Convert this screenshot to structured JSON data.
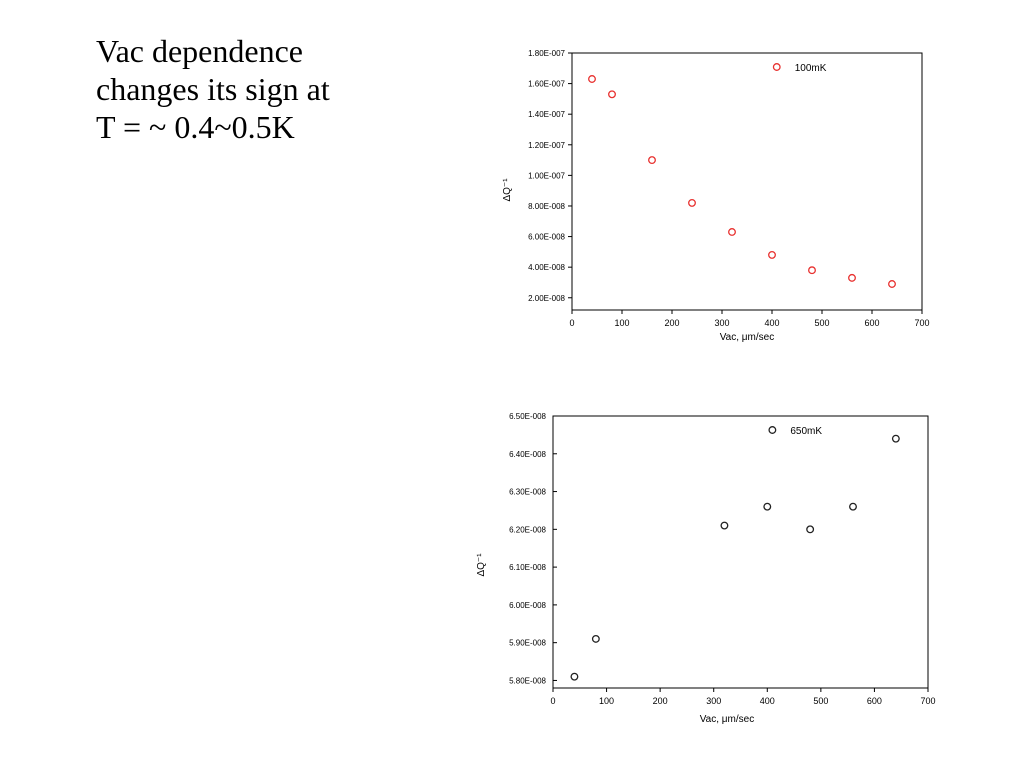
{
  "slide": {
    "title_lines": [
      "Vac dependence",
      "changes its sign at",
      "T = ~ 0.4~0.5K"
    ]
  },
  "chart_data": [
    {
      "type": "scatter",
      "title": "",
      "xlabel": "Vac, μm/sec",
      "ylabel": "ΔQ⁻¹",
      "xlim": [
        0,
        700
      ],
      "ylim": [
        1.2e-08,
        1.8e-07
      ],
      "x_ticks": [
        0,
        100,
        200,
        300,
        400,
        500,
        600,
        700
      ],
      "x_tick_labels": [
        "0",
        "100",
        "200",
        "300",
        "400",
        "500",
        "600",
        "700"
      ],
      "y_ticks": [
        2e-08,
        4e-08,
        6e-08,
        8e-08,
        1e-07,
        1.2e-07,
        1.4e-07,
        1.6e-07,
        1.8e-07
      ],
      "y_tick_labels": [
        "2.00E-008",
        "4.00E-008",
        "6.00E-008",
        "8.00E-008",
        "1.00E-007",
        "1.20E-007",
        "1.40E-007",
        "1.60E-007",
        "1.80E-007"
      ],
      "grid": false,
      "legend_position": "top-right",
      "series": [
        {
          "name": "100mK",
          "color": "#e8312f",
          "marker": "open-circle",
          "x": [
            40,
            80,
            160,
            240,
            320,
            400,
            480,
            560,
            640
          ],
          "y": [
            1.63e-07,
            1.53e-07,
            1.1e-07,
            8.2e-08,
            6.3e-08,
            4.8e-08,
            3.8e-08,
            3.3e-08,
            2.9e-08
          ]
        }
      ]
    },
    {
      "type": "scatter",
      "title": "",
      "xlabel": "Vac, μm/sec",
      "ylabel": "ΔQ⁻¹",
      "xlim": [
        0,
        700
      ],
      "ylim": [
        5.78e-08,
        6.5e-08
      ],
      "x_ticks": [
        0,
        100,
        200,
        300,
        400,
        500,
        600,
        700
      ],
      "x_tick_labels": [
        "0",
        "100",
        "200",
        "300",
        "400",
        "500",
        "600",
        "700"
      ],
      "y_ticks": [
        5.8e-08,
        5.9e-08,
        6e-08,
        6.1e-08,
        6.2e-08,
        6.3e-08,
        6.4e-08,
        6.5e-08
      ],
      "y_tick_labels": [
        "5.80E-008",
        "5.90E-008",
        "6.00E-008",
        "6.10E-008",
        "6.20E-008",
        "6.30E-008",
        "6.40E-008",
        "6.50E-008"
      ],
      "grid": false,
      "legend_position": "top-right",
      "series": [
        {
          "name": "650mK",
          "color": "#222222",
          "marker": "open-circle",
          "x": [
            40,
            80,
            320,
            400,
            480,
            560,
            640
          ],
          "y": [
            5.81e-08,
            5.91e-08,
            6.21e-08,
            6.26e-08,
            6.2e-08,
            6.26e-08,
            6.44e-08
          ]
        }
      ]
    }
  ]
}
